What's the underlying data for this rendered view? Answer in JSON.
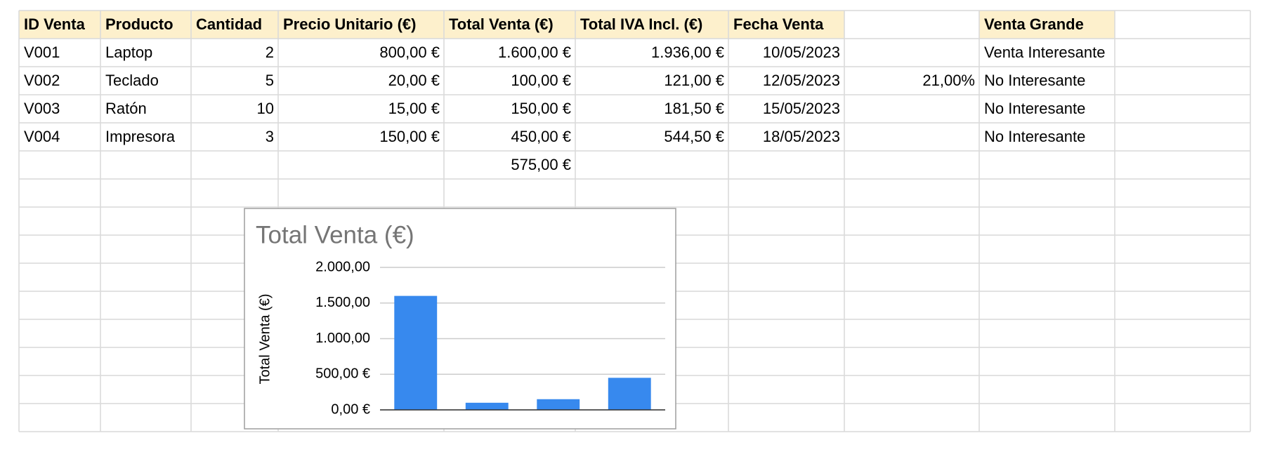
{
  "table": {
    "rows": [
      [
        "ID Venta",
        "Producto",
        "Cantidad",
        "Precio Unitario (€)",
        "Total Venta (€)",
        "Total IVA Incl. (€)",
        "Fecha Venta",
        null,
        "Venta Grande",
        null
      ],
      [
        "V001",
        "Laptop",
        "2",
        "800,00 €",
        "1.600,00 €",
        "1.936,00 €",
        "10/05/2023",
        null,
        "Venta Interesante",
        null
      ],
      [
        "V002",
        "Teclado",
        "5",
        "20,00 €",
        "100,00 €",
        "121,00 €",
        "12/05/2023",
        "21,00%",
        "No Interesante",
        null
      ],
      [
        "V003",
        "Ratón",
        "10",
        "15,00 €",
        "150,00 €",
        "181,50 €",
        "15/05/2023",
        null,
        "No Interesante",
        null
      ],
      [
        "V004",
        "Impresora",
        "3",
        "150,00 €",
        "450,00 €",
        "544,50 €",
        "18/05/2023",
        null,
        "No Interesante",
        null
      ],
      [
        null,
        null,
        null,
        null,
        "575,00 €",
        null,
        null,
        null,
        null,
        null
      ]
    ]
  },
  "chart_data": {
    "type": "bar",
    "title": "Total Venta (€)",
    "y_label": "Total Venta (€)",
    "categories": [
      null,
      null,
      null,
      null
    ],
    "values": [
      1600,
      100,
      150,
      450
    ],
    "color": "#3789ee",
    "ylim": [
      0,
      2000
    ],
    "yticks": [
      {
        "value": 0,
        "label": "0,00 €"
      },
      {
        "value": 500,
        "label": "500,00 €"
      },
      {
        "value": 1000,
        "label": "1.000,00"
      },
      {
        "value": 1500,
        "label": "1.500,00"
      },
      {
        "value": 2000,
        "label": "2.000,00"
      }
    ],
    "grid": true
  }
}
